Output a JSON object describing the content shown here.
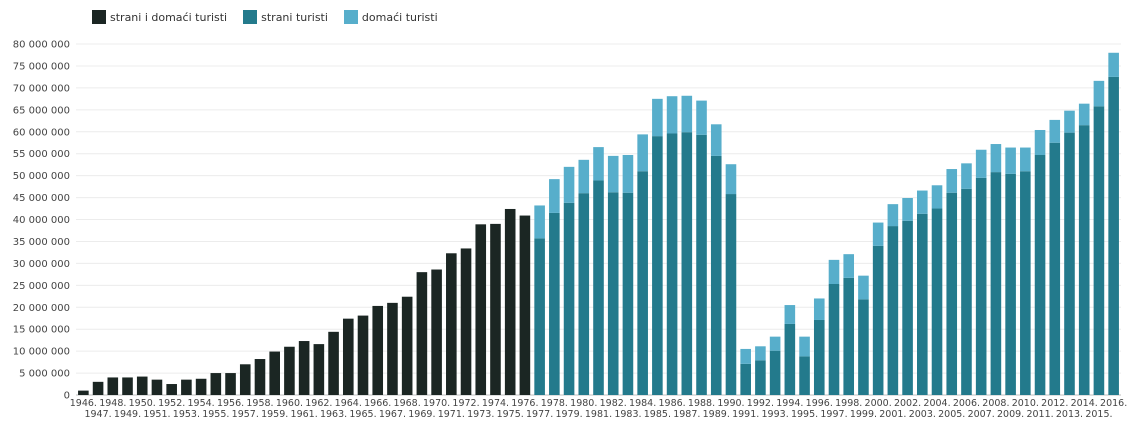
{
  "chart_data": {
    "type": "bar",
    "stacked": true,
    "title": "",
    "xlabel": "",
    "ylabel": "",
    "ylim": [
      0,
      80000000
    ],
    "ytick_step": 5000000,
    "y_ticks": [
      "0",
      "5 000 000",
      "10 000 000",
      "15 000 000",
      "20 000 000",
      "25 000 000",
      "30 000 000",
      "35 000 000",
      "40 000 000",
      "45 000 000",
      "50 000 000",
      "55 000 000",
      "60 000 000",
      "65 000 000",
      "70 000 000",
      "75 000 000",
      "80 000 000"
    ],
    "grid": true,
    "legend_position": "top-left",
    "legend": [
      {
        "name": "strani i domaći turisti",
        "color": "#1b2623"
      },
      {
        "name": "strani turisti",
        "color": "#237a8c"
      },
      {
        "name": "domaći turisti",
        "color": "#57aecb"
      }
    ],
    "categories": [
      "1946.",
      "1947.",
      "1948.",
      "1949.",
      "1950.",
      "1951.",
      "1952.",
      "1953.",
      "1954.",
      "1955.",
      "1956.",
      "1957.",
      "1958.",
      "1959.",
      "1960.",
      "1961.",
      "1962.",
      "1963.",
      "1964.",
      "1965.",
      "1966.",
      "1967.",
      "1968.",
      "1969.",
      "1970.",
      "1971.",
      "1972.",
      "1973.",
      "1974.",
      "1975.",
      "1976.",
      "1977.",
      "1978.",
      "1979.",
      "1980.",
      "1981.",
      "1982.",
      "1983.",
      "1984.",
      "1985.",
      "1986.",
      "1987.",
      "1988.",
      "1989.",
      "1990.",
      "1991.",
      "1992.",
      "1993.",
      "1994.",
      "1995.",
      "1996.",
      "1997.",
      "1998.",
      "1999.",
      "2000.",
      "2001.",
      "2002.",
      "2003.",
      "2004.",
      "2005.",
      "2006.",
      "2007.",
      "2008.",
      "2009.",
      "2010.",
      "2011.",
      "2012.",
      "2013.",
      "2014.",
      "2015.",
      "2016."
    ],
    "series": [
      {
        "name": "strani i domaći turisti",
        "values": [
          1000000,
          3000000,
          4000000,
          4000000,
          4200000,
          3500000,
          2500000,
          3500000,
          3700000,
          5000000,
          5000000,
          7000000,
          8200000,
          9900000,
          11000000,
          12300000,
          11600000,
          14400000,
          17400000,
          18100000,
          20300000,
          21000000,
          22400000,
          28000000,
          28600000,
          32300000,
          33400000,
          38900000,
          39000000,
          42400000,
          40900000,
          0,
          0,
          0,
          0,
          0,
          0,
          0,
          0,
          0,
          0,
          0,
          0,
          0,
          0,
          0,
          0,
          0,
          0,
          0,
          0,
          0,
          0,
          0,
          0,
          0,
          0,
          0,
          0,
          0,
          0,
          0,
          0,
          0,
          0,
          0,
          0,
          0,
          0,
          0,
          0
        ]
      },
      {
        "name": "strani turisti",
        "values": [
          0,
          0,
          0,
          0,
          0,
          0,
          0,
          0,
          0,
          0,
          0,
          0,
          0,
          0,
          0,
          0,
          0,
          0,
          0,
          0,
          0,
          0,
          0,
          0,
          0,
          0,
          0,
          0,
          0,
          0,
          0,
          35700000,
          41500000,
          43800000,
          46000000,
          48900000,
          46200000,
          46100000,
          51000000,
          59000000,
          59600000,
          59900000,
          59300000,
          54500000,
          45800000,
          7100000,
          7900000,
          10100000,
          16200000,
          8800000,
          17100000,
          25300000,
          26700000,
          21800000,
          34000000,
          38500000,
          39700000,
          41300000,
          42500000,
          46100000,
          47000000,
          49500000,
          50800000,
          50400000,
          51000000,
          54700000,
          57500000,
          59800000,
          61500000,
          65800000,
          72500000
        ]
      },
      {
        "name": "domaći turisti",
        "values": [
          0,
          0,
          0,
          0,
          0,
          0,
          0,
          0,
          0,
          0,
          0,
          0,
          0,
          0,
          0,
          0,
          0,
          0,
          0,
          0,
          0,
          0,
          0,
          0,
          0,
          0,
          0,
          0,
          0,
          0,
          0,
          7500000,
          7700000,
          8200000,
          7600000,
          7600000,
          8300000,
          8600000,
          8400000,
          8500000,
          8500000,
          8300000,
          7800000,
          7200000,
          6800000,
          3400000,
          3200000,
          3200000,
          4300000,
          4500000,
          4900000,
          5500000,
          5400000,
          5400000,
          5300000,
          5000000,
          5200000,
          5300000,
          5300000,
          5400000,
          5800000,
          6400000,
          6400000,
          6000000,
          5400000,
          5700000,
          5200000,
          5000000,
          4900000,
          5800000,
          5500000
        ]
      }
    ]
  }
}
